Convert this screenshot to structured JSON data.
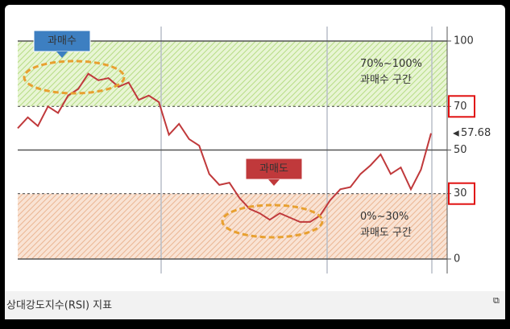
{
  "chart_data": {
    "type": "line",
    "footer": "상대강도지수(RSI) 지표",
    "series": [
      {
        "name": "RSI",
        "color": "#c0393b",
        "values": [
          60,
          65,
          61,
          70,
          67,
          75,
          78,
          85,
          82,
          83,
          79,
          81,
          73,
          75,
          72,
          57,
          62,
          55,
          52,
          39,
          34,
          35,
          28,
          23,
          21,
          18,
          21,
          19,
          17,
          17,
          20,
          27,
          32,
          33,
          39,
          43,
          48,
          39,
          42,
          32,
          41,
          57.68
        ]
      }
    ],
    "ylim": [
      0,
      100
    ],
    "yticks": [
      0,
      30,
      50,
      70,
      100
    ],
    "thresholds": [
      70,
      30
    ],
    "zones": [
      {
        "from": 70,
        "to": 100,
        "color": "#c9e8a0",
        "range_label": "70%~100%",
        "name": "과매수 구간",
        "tag": "과매수",
        "tag_color": "#3d7fc1"
      },
      {
        "from": 0,
        "to": 30,
        "color": "#f3c9ad",
        "range_label": "0%~30%",
        "name": "과매도 구간",
        "tag": "과매도",
        "tag_color": "#c0393b"
      }
    ]
  }
}
